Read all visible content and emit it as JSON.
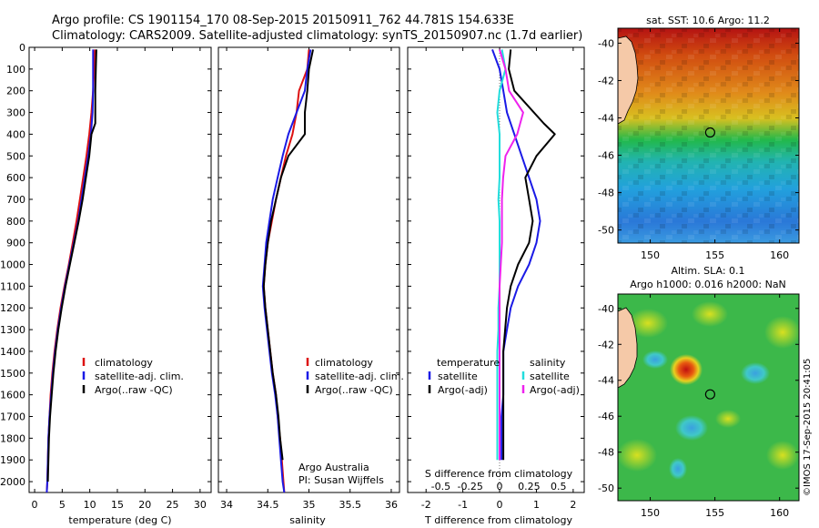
{
  "header": {
    "line1": "Argo profile: CS 1901154_170 08-Sep-2015 20150911_762 44.781S 154.633E",
    "line2": "Climatology: CARS2009. Satellite-adjusted climatology: synTS_20150907.nc (1.7d earlier)"
  },
  "footer": {
    "attribution_1": "Argo Australia",
    "attribution_2": "PI: Susan Wijffels",
    "side_stamp": "©IMOS 17-Sep-2015 20:41:05"
  },
  "colors": {
    "climatology": "#dd1111",
    "satellite": "#1a1ae6",
    "argo": "#000000",
    "salinity_satellite": "#22dddd",
    "salinity_argo": "#ee22ee"
  },
  "chart_data": [
    {
      "type": "line",
      "title": "",
      "xlabel": "temperature (deg C)",
      "ylabel": "",
      "xlim": [
        -1,
        32
      ],
      "ylim": [
        2050,
        0
      ],
      "xticks": [
        0,
        5,
        10,
        15,
        20,
        25,
        30
      ],
      "yticks": [
        0,
        100,
        200,
        300,
        400,
        500,
        600,
        700,
        800,
        900,
        1000,
        1100,
        1200,
        1300,
        1400,
        1500,
        1600,
        1700,
        1800,
        1900,
        2000
      ],
      "legend": [
        "climatology",
        "satellite-adj. clim.",
        "Argo(..raw -QC)"
      ],
      "series": [
        {
          "name": "climatology",
          "x": [
            10.9,
            10.8,
            10.6,
            10.3,
            9.9,
            9.4,
            8.8,
            8.2,
            7.6,
            6.9,
            6.2,
            5.4,
            4.7,
            4.1,
            3.6,
            3.2,
            2.9,
            2.7,
            2.5,
            2.4,
            2.3,
            2.2
          ],
          "y": [
            10,
            100,
            200,
            300,
            400,
            500,
            600,
            700,
            800,
            900,
            1000,
            1100,
            1200,
            1300,
            1400,
            1500,
            1600,
            1700,
            1800,
            1900,
            2000,
            2050
          ]
        },
        {
          "name": "satellite-adj. clim.",
          "x": [
            10.6,
            10.6,
            10.6,
            10.5,
            10.2,
            9.7,
            9.1,
            8.5,
            7.9,
            7.1,
            6.3,
            5.5,
            4.8,
            4.2,
            3.7,
            3.3,
            3.0,
            2.7,
            2.5,
            2.4,
            2.3,
            2.2
          ],
          "y": [
            10,
            100,
            200,
            300,
            400,
            500,
            600,
            700,
            800,
            900,
            1000,
            1100,
            1200,
            1300,
            1400,
            1500,
            1600,
            1700,
            1800,
            1900,
            2000,
            2050
          ]
        },
        {
          "name": "Argo(..raw -QC)",
          "x": [
            11.2,
            11.1,
            11.0,
            11.0,
            10.3,
            9.9,
            9.3,
            8.7,
            8.0,
            7.2,
            6.4,
            5.6,
            4.9,
            4.3,
            3.8,
            3.4,
            3.1,
            2.8,
            2.6,
            2.5,
            2.4
          ],
          "y": [
            10,
            100,
            200,
            350,
            400,
            500,
            600,
            700,
            800,
            900,
            1000,
            1100,
            1200,
            1300,
            1400,
            1500,
            1600,
            1700,
            1800,
            1900,
            2000
          ]
        }
      ]
    },
    {
      "type": "line",
      "title": "",
      "xlabel": "salinity",
      "ylabel": "",
      "xlim": [
        33.9,
        36.1
      ],
      "ylim": [
        2050,
        0
      ],
      "xticks": [
        34,
        34.5,
        35,
        35.5,
        36
      ],
      "legend": [
        "climatology",
        "satellite-adj. clim.",
        "Argo(..raw -QC)"
      ],
      "series": [
        {
          "name": "climatology",
          "x": [
            35.0,
            34.98,
            34.88,
            34.85,
            34.8,
            34.72,
            34.66,
            34.6,
            34.55,
            34.5,
            34.47,
            34.45,
            34.47,
            34.5,
            34.53,
            34.56,
            34.6,
            34.62,
            34.65,
            34.67,
            34.69,
            34.7
          ],
          "y": [
            10,
            100,
            200,
            300,
            400,
            500,
            600,
            700,
            800,
            900,
            1000,
            1100,
            1200,
            1300,
            1400,
            1500,
            1600,
            1700,
            1800,
            1900,
            2000,
            2050
          ]
        },
        {
          "name": "satellite-adj. clim.",
          "x": [
            35.02,
            34.98,
            34.95,
            34.85,
            34.75,
            34.68,
            34.62,
            34.56,
            34.52,
            34.48,
            34.46,
            34.44,
            34.46,
            34.49,
            34.52,
            34.55,
            34.59,
            34.62,
            34.64,
            34.66,
            34.68,
            34.7
          ],
          "y": [
            10,
            100,
            200,
            300,
            400,
            500,
            600,
            700,
            800,
            900,
            1000,
            1100,
            1200,
            1300,
            1400,
            1500,
            1600,
            1700,
            1800,
            1900,
            2000,
            2050
          ]
        },
        {
          "name": "Argo(..raw -QC)",
          "x": [
            35.05,
            35.0,
            34.98,
            34.95,
            34.95,
            34.75,
            34.66,
            34.6,
            34.54,
            34.5,
            34.47,
            34.45,
            34.47,
            34.5,
            34.53,
            34.56,
            34.6,
            34.63,
            34.65,
            34.68
          ],
          "y": [
            10,
            100,
            200,
            300,
            400,
            500,
            600,
            700,
            800,
            900,
            1000,
            1100,
            1200,
            1300,
            1400,
            1500,
            1600,
            1700,
            1800,
            1900
          ]
        }
      ]
    },
    {
      "type": "line",
      "title": "",
      "xlabel": "T difference from climatology",
      "xlabel_top": "S difference from climatology",
      "ylabel": "",
      "xlim": [
        -2.5,
        2.3
      ],
      "ylim": [
        2050,
        0
      ],
      "xticks": [
        -2,
        -1,
        0,
        1,
        2
      ],
      "xticklabels": [
        "-2",
        "-1",
        "0",
        "1",
        "2"
      ],
      "xticks_top": [
        -0.5,
        -0.25,
        0,
        0.25,
        0.5
      ],
      "xticklabels_top": [
        "-0.5",
        "-0.25",
        "0",
        "0.25",
        "0.5"
      ],
      "legend_headers": [
        "temperature",
        "salinity"
      ],
      "legend": [
        "satellite",
        "Argo(-adj)",
        "satellite",
        "Argo(-adj)"
      ],
      "series": [
        {
          "name": "T satellite",
          "x": [
            -0.2,
            0.0,
            0.1,
            0.2,
            0.4,
            0.6,
            0.8,
            1.0,
            1.1,
            1.0,
            0.8,
            0.5,
            0.3,
            0.2,
            0.1,
            0.1,
            0.1,
            0.05,
            0.05,
            0.05
          ],
          "y": [
            10,
            100,
            200,
            300,
            400,
            500,
            600,
            700,
            800,
            900,
            1000,
            1100,
            1200,
            1300,
            1400,
            1500,
            1600,
            1700,
            1800,
            1900
          ]
        },
        {
          "name": "T Argo(-adj)",
          "x": [
            0.3,
            0.25,
            0.4,
            1.2,
            1.5,
            1.0,
            0.7,
            0.8,
            0.9,
            0.8,
            0.5,
            0.3,
            0.2,
            0.15,
            0.1,
            0.1,
            0.1,
            0.1,
            0.1,
            0.1
          ],
          "y": [
            10,
            100,
            200,
            350,
            400,
            500,
            600,
            700,
            800,
            900,
            1000,
            1100,
            1200,
            1300,
            1400,
            1500,
            1600,
            1700,
            1800,
            1900
          ]
        },
        {
          "name": "S satellite",
          "x": [
            0.02,
            0.05,
            0.0,
            -0.02,
            0.0,
            0.0,
            0.0,
            -0.01,
            0.0,
            0.0,
            0.0,
            0.0,
            -0.01,
            -0.01,
            -0.02,
            -0.02,
            -0.02,
            -0.02,
            -0.02,
            -0.02
          ],
          "y": [
            10,
            100,
            200,
            300,
            400,
            500,
            600,
            700,
            800,
            900,
            1000,
            1100,
            1200,
            1300,
            1400,
            1500,
            1600,
            1700,
            1800,
            1900
          ]
        },
        {
          "name": "S Argo(-adj)",
          "x": [
            0.0,
            0.05,
            0.08,
            0.2,
            0.15,
            0.05,
            0.03,
            0.02,
            0.02,
            0.02,
            0.01,
            0.0,
            0.0,
            0.0,
            0.0,
            0.0,
            0.0,
            0.0,
            0.0,
            0.0
          ],
          "y": [
            10,
            100,
            200,
            300,
            400,
            500,
            600,
            700,
            800,
            900,
            1000,
            1100,
            1200,
            1300,
            1400,
            1500,
            1600,
            1700,
            1800,
            1900
          ]
        }
      ]
    },
    {
      "type": "heatmap",
      "title": "sat. SST: 10.6 Argo: 11.2",
      "xlim": [
        147.5,
        161.5
      ],
      "ylim": [
        -50.7,
        -39.2
      ],
      "xticks": [
        150,
        155,
        160
      ],
      "yticks": [
        -40,
        -42,
        -44,
        -46,
        -48,
        -50
      ],
      "marker": {
        "lon": 154.633,
        "lat": -44.781
      }
    },
    {
      "type": "heatmap",
      "title": "Altim. SLA: 0.1",
      "subtitle": "Argo h1000: 0.016 h2000: NaN",
      "xlim": [
        147.5,
        161.5
      ],
      "ylim": [
        -50.7,
        -39.2
      ],
      "xticks": [
        150,
        155,
        160
      ],
      "yticks": [
        -40,
        -42,
        -44,
        -46,
        -48,
        -50
      ],
      "marker": {
        "lon": 154.633,
        "lat": -44.781
      }
    }
  ]
}
